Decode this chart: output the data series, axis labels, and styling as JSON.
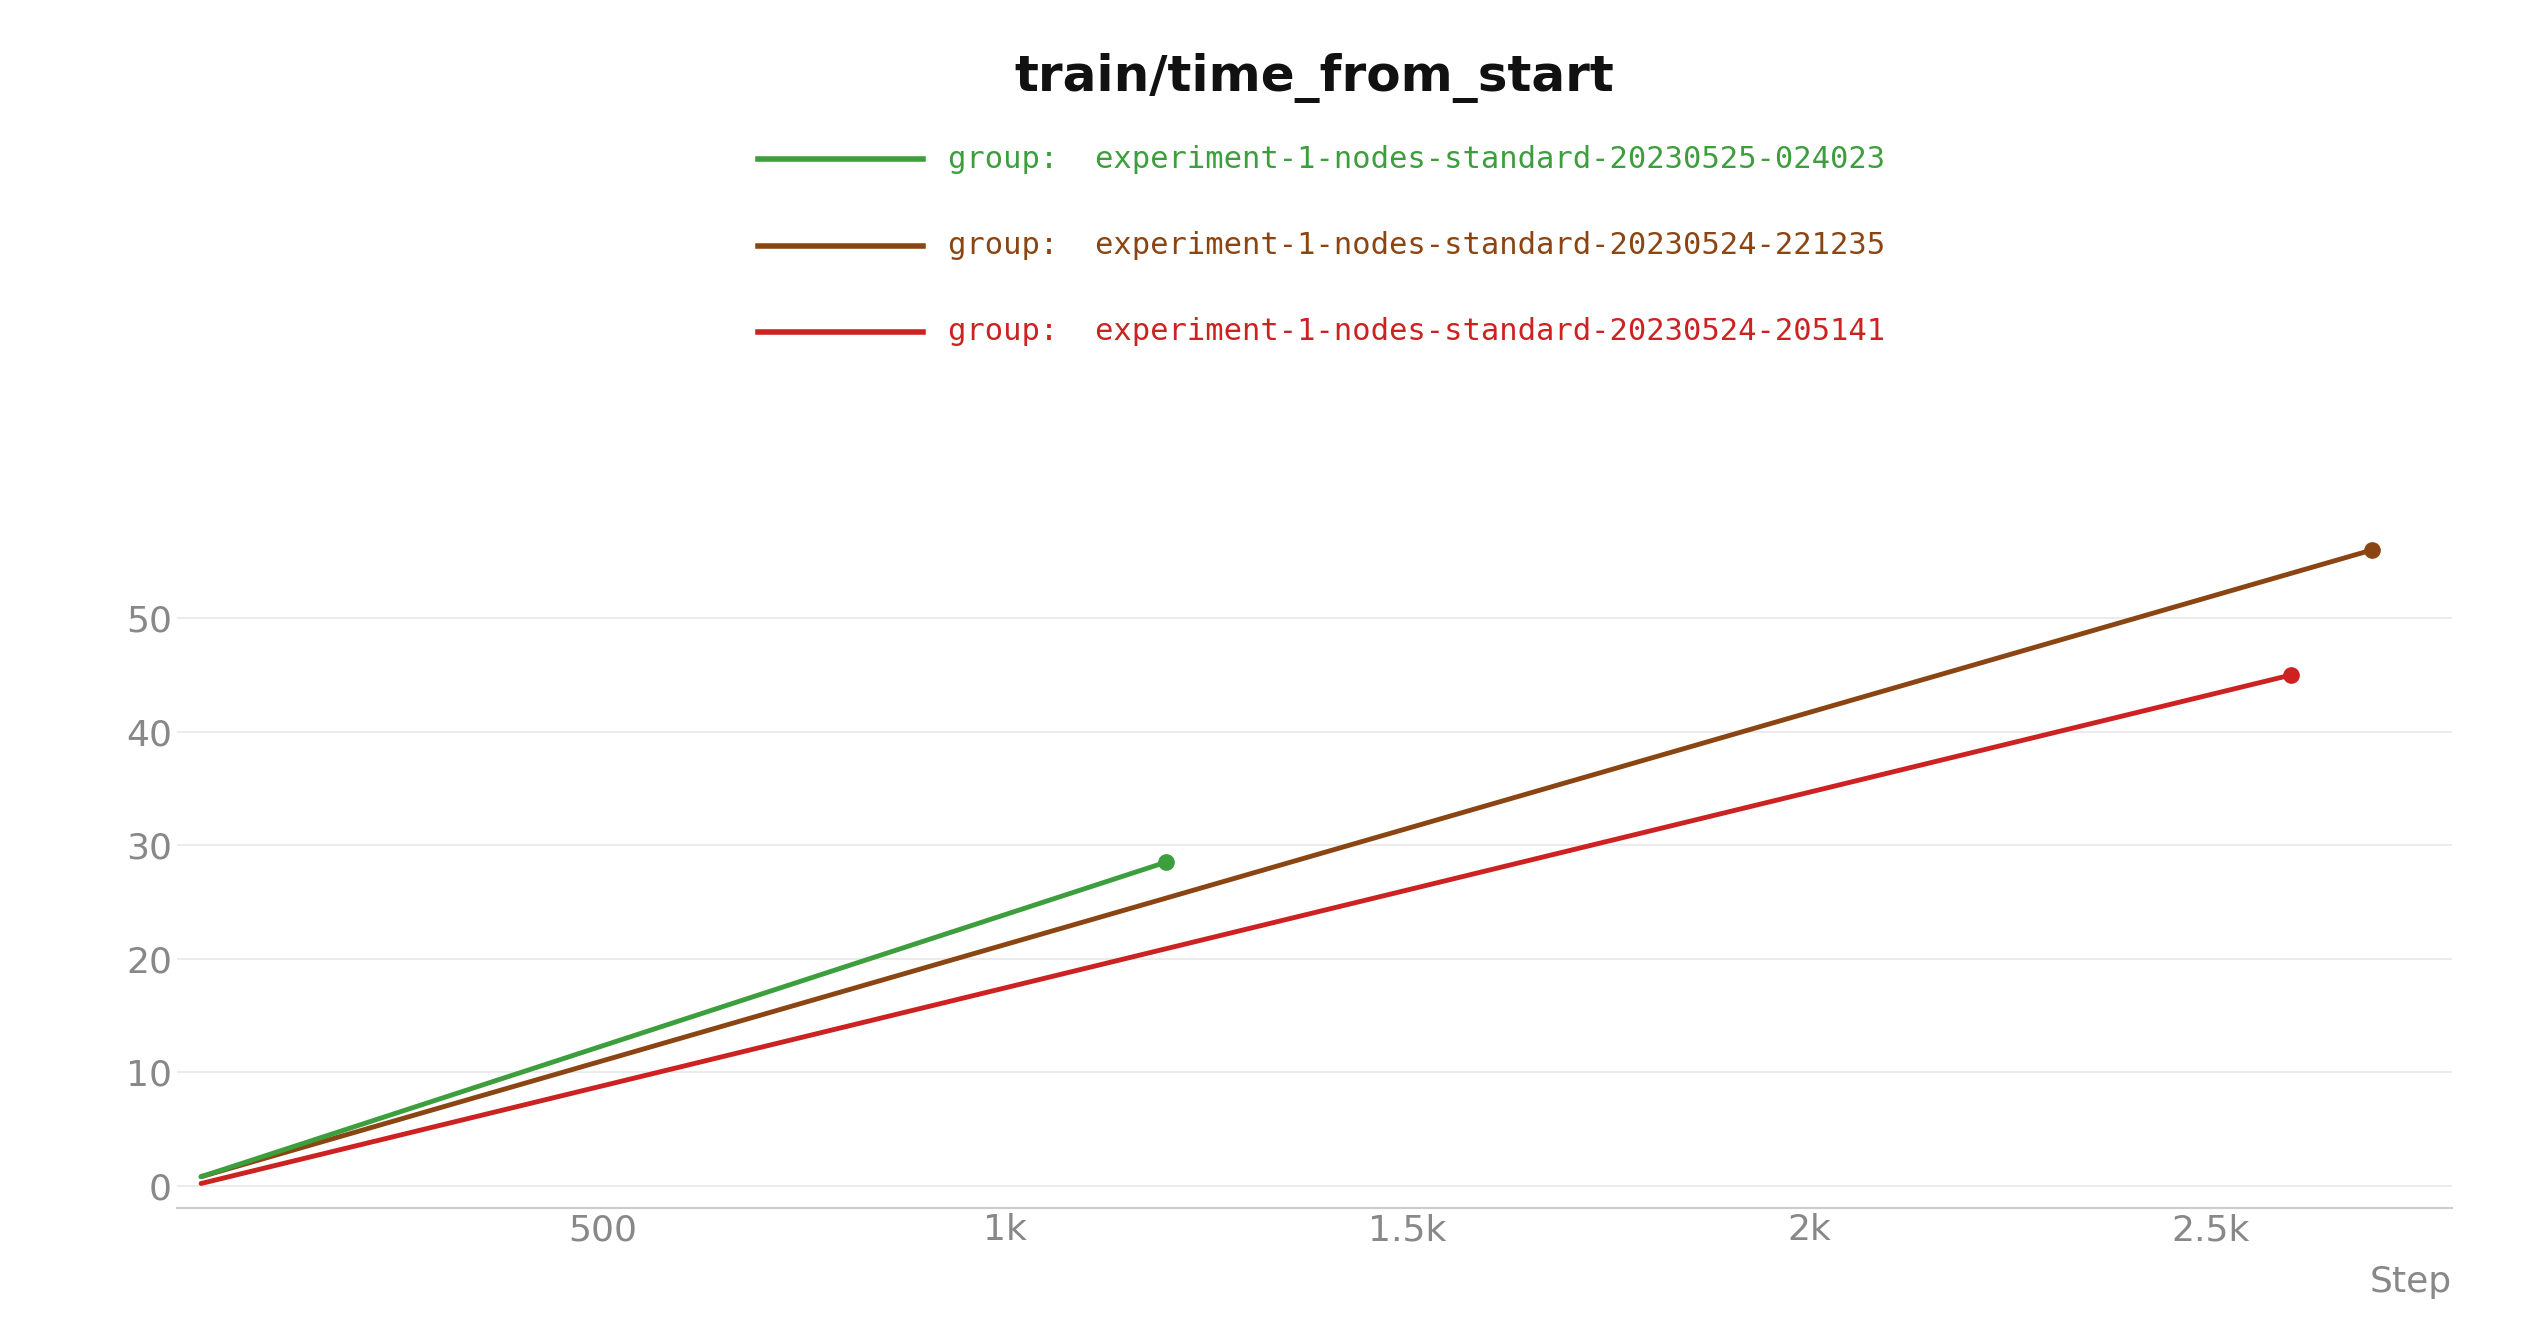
{
  "title": "train/time_from_start",
  "xlabel": "Step",
  "background_color": "#ffffff",
  "grid_color": "#e8e8e8",
  "title_fontsize": 36,
  "tick_fontsize": 26,
  "xlabel_fontsize": 26,
  "legend_fontsize": 22,
  "series": [
    {
      "label": "group:  experiment-1-nodes-standard-20230525-024023",
      "color": "#3d9e3d",
      "x": [
        0,
        1200
      ],
      "y": [
        0.8,
        28.5
      ],
      "marker_end": true,
      "zorder": 3
    },
    {
      "label": "group:  experiment-1-nodes-standard-20230524-221235",
      "color": "#8B4513",
      "x": [
        0,
        2700
      ],
      "y": [
        0.8,
        56
      ],
      "marker_end": true,
      "zorder": 2
    },
    {
      "label": "group:  experiment-1-nodes-standard-20230524-205141",
      "color": "#cc2222",
      "x": [
        0,
        2600
      ],
      "y": [
        0.2,
        45
      ],
      "marker_end": true,
      "zorder": 1
    }
  ],
  "xlim": [
    -30,
    2800
  ],
  "ylim": [
    -2,
    60
  ],
  "yticks": [
    0,
    10,
    20,
    30,
    40,
    50
  ],
  "xtick_positions": [
    0,
    500,
    1000,
    1500,
    2000,
    2500
  ],
  "xtick_labels": [
    "",
    "500",
    "1k",
    "1.5k",
    "2k",
    "2.5k"
  ]
}
